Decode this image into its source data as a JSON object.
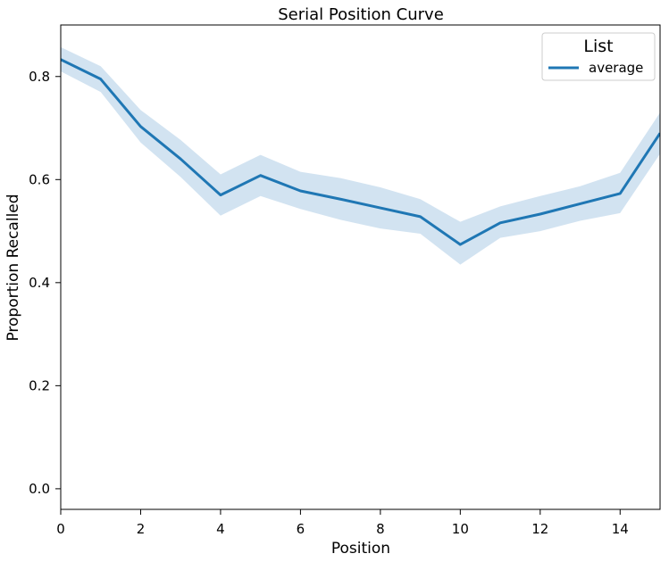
{
  "chart_data": {
    "type": "line",
    "title": "Serial Position Curve",
    "xlabel": "Position",
    "ylabel": "Proportion Recalled",
    "xlim": [
      0,
      15
    ],
    "ylim": [
      -0.04,
      0.9
    ],
    "xticks": [
      0,
      2,
      4,
      6,
      8,
      10,
      12,
      14
    ],
    "yticks": [
      0.0,
      0.2,
      0.4,
      0.6,
      0.8
    ],
    "ytick_labels": [
      "0.0",
      "0.2",
      "0.4",
      "0.6",
      "0.8"
    ],
    "grid": false,
    "legend": {
      "title": "List",
      "placement": "top-right"
    },
    "series": [
      {
        "name": "average",
        "color": "#1f77b4",
        "band_color": "#a6c8e3",
        "x": [
          0,
          1,
          2,
          3,
          4,
          5,
          6,
          7,
          8,
          9,
          10,
          11,
          12,
          13,
          14,
          15
        ],
        "values": [
          0.833,
          0.795,
          0.703,
          0.64,
          0.57,
          0.608,
          0.578,
          0.562,
          0.545,
          0.528,
          0.474,
          0.516,
          0.533,
          0.553,
          0.573,
          0.69
        ],
        "lower": [
          0.81,
          0.77,
          0.672,
          0.605,
          0.53,
          0.568,
          0.543,
          0.522,
          0.505,
          0.495,
          0.435,
          0.487,
          0.5,
          0.52,
          0.535,
          0.65
        ],
        "upper": [
          0.857,
          0.82,
          0.735,
          0.677,
          0.61,
          0.648,
          0.615,
          0.603,
          0.585,
          0.562,
          0.518,
          0.548,
          0.568,
          0.587,
          0.613,
          0.73
        ]
      }
    ]
  }
}
